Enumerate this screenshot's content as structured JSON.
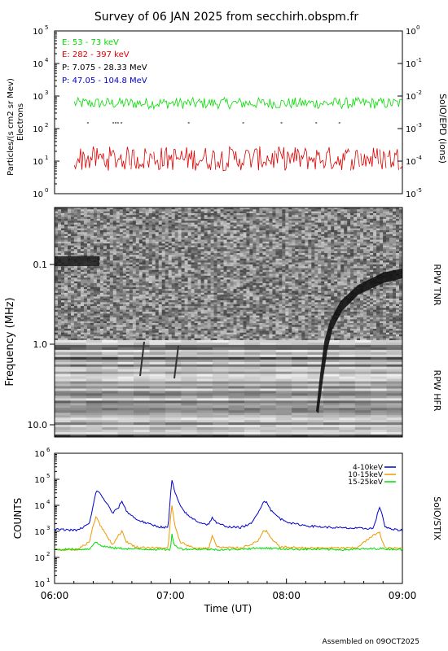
{
  "title": "Survey of 06 JAN 2025 from secchirh.obspm.fr",
  "footer": "Assembled on 09OCT2025",
  "colors": {
    "green": "#00dd00",
    "red": "#dd0000",
    "black": "#000000",
    "blue": "#0000cc",
    "orange": "#ee9900"
  },
  "chart_data": [
    {
      "type": "line",
      "panel": "epd",
      "ylabel": "Particles/(s cm2 sr Mev)",
      "ylabel2": "Electrons",
      "right_label": "SoIO/EPD (ions)",
      "ylim": [
        1,
        100000
      ],
      "ylog": true,
      "yticks_left": [
        "10",
        "10",
        "10",
        "10",
        "10",
        "10"
      ],
      "yticks_left_exp": [
        "0",
        "1",
        "2",
        "3",
        "4",
        "5"
      ],
      "yticks_right": [
        "10",
        "10",
        "10",
        "10",
        "10"
      ],
      "yticks_right_exp": [
        "-5",
        "-4",
        "-3",
        "-2",
        "-1"
      ],
      "yticks_right_top": "10",
      "yticks_right_top_exp": "0",
      "legend": [
        {
          "label": "E: 53 - 73 keV",
          "color": "#00dd00"
        },
        {
          "label": "E: 282 - 397 keV",
          "color": "#dd0000"
        },
        {
          "label": "P: 7.075 - 28.33 MeV",
          "color": "#000000"
        },
        {
          "label": "P: 47.05 - 104.8 MeV",
          "color": "#0000cc"
        }
      ],
      "series": [
        {
          "name": "E: 53 - 73 keV",
          "x_start": 6.17,
          "x_end": 9.0,
          "level": 600
        },
        {
          "name": "E: 282 - 397 keV",
          "x_start": 6.17,
          "x_end": 9.0,
          "level": 12
        }
      ]
    },
    {
      "type": "heatmap",
      "panel": "rpw",
      "ylabel": "Frequency (MHz)",
      "yticks": [
        "0.1",
        "1.0",
        "10.0"
      ],
      "right_label_top": "RPW TNR",
      "right_label_bottom": "RPW HFR"
    },
    {
      "type": "line",
      "panel": "stix",
      "ylabel": "COUNTS",
      "right_label": "SoIO/STIX",
      "xlabel": "Time (UT)",
      "xticks": [
        "06:00",
        "07:00",
        "08:00",
        "09:00"
      ],
      "xlim": [
        6.0,
        9.0
      ],
      "ylim": [
        10,
        1000000
      ],
      "ylog": true,
      "yticks_exp": [
        "1",
        "2",
        "3",
        "4",
        "5",
        "6"
      ],
      "legend": [
        {
          "label": "4-10keV",
          "color": "#0000cc"
        },
        {
          "label": "10-15keV",
          "color": "#ee9900"
        },
        {
          "label": "15-25keV",
          "color": "#00dd00"
        }
      ],
      "series": [
        {
          "name": "4-10keV",
          "x": [
            6.0,
            6.2,
            6.3,
            6.33,
            6.36,
            6.4,
            6.45,
            6.5,
            6.55,
            6.58,
            6.62,
            6.7,
            6.8,
            6.9,
            6.98,
            7.01,
            7.04,
            7.08,
            7.15,
            7.25,
            7.33,
            7.36,
            7.4,
            7.5,
            7.6,
            7.7,
            7.75,
            7.8,
            7.83,
            7.87,
            7.95,
            8.05,
            8.2,
            8.4,
            8.6,
            8.75,
            8.8,
            8.82,
            8.85,
            8.9,
            9.0
          ],
          "y": [
            1200,
            1100,
            2000,
            8000,
            40000,
            25000,
            12000,
            5000,
            8000,
            15000,
            6000,
            3000,
            2000,
            1500,
            1400,
            100000,
            30000,
            10000,
            4000,
            2200,
            1800,
            3500,
            2000,
            1500,
            1400,
            2000,
            5000,
            13000,
            14000,
            6000,
            3000,
            2000,
            1600,
            1400,
            1300,
            1300,
            8000,
            6000,
            1500,
            1200,
            1100
          ]
        },
        {
          "name": "10-15keV",
          "x": [
            6.0,
            6.2,
            6.3,
            6.33,
            6.36,
            6.4,
            6.45,
            6.5,
            6.55,
            6.58,
            6.62,
            6.7,
            6.9,
            6.98,
            7.01,
            7.04,
            7.08,
            7.2,
            7.33,
            7.36,
            7.4,
            7.6,
            7.75,
            7.8,
            7.83,
            7.87,
            7.95,
            8.2,
            8.6,
            8.8,
            8.82,
            8.85,
            9.0
          ],
          "y": [
            200,
            200,
            400,
            1500,
            4000,
            1500,
            700,
            300,
            700,
            1000,
            400,
            250,
            230,
            230,
            11000,
            1500,
            400,
            230,
            220,
            700,
            250,
            230,
            400,
            1000,
            1000,
            500,
            250,
            230,
            230,
            1000,
            500,
            230,
            220
          ]
        },
        {
          "name": "15-25keV",
          "x": [
            6.0,
            6.3,
            6.35,
            6.4,
            6.5,
            6.7,
            7.0,
            7.01,
            7.03,
            7.1,
            7.5,
            7.8,
            8.0,
            8.5,
            8.8,
            9.0
          ],
          "y": [
            200,
            210,
            400,
            280,
            230,
            210,
            200,
            900,
            300,
            210,
            200,
            230,
            210,
            200,
            220,
            200
          ]
        }
      ]
    }
  ]
}
